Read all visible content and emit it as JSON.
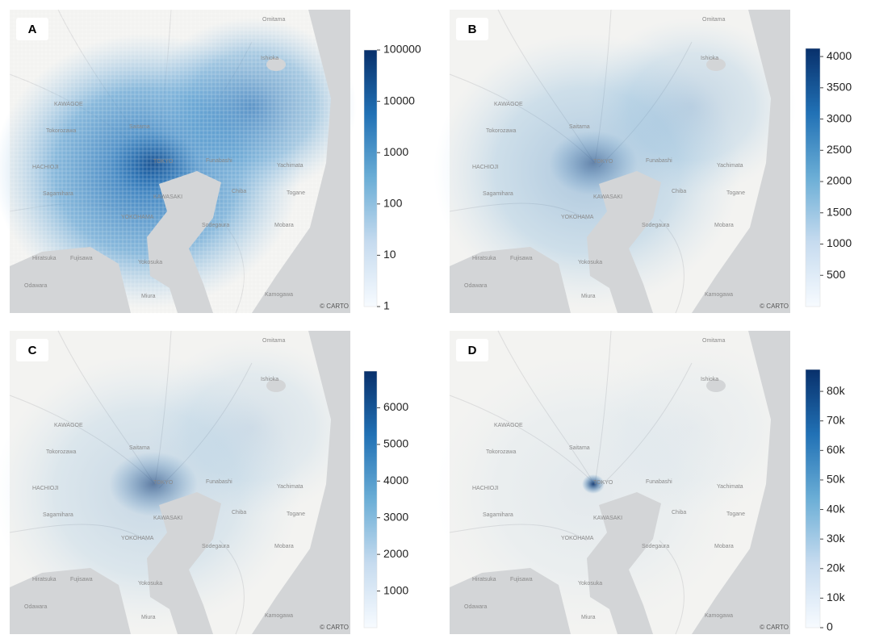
{
  "panels": [
    {
      "label": "A",
      "attribution": "© CARTO",
      "colorbar": {
        "scale": "log",
        "lim": [
          1,
          100000
        ],
        "ticks": [
          1,
          10,
          100,
          1000,
          10000,
          100000
        ]
      }
    },
    {
      "label": "B",
      "attribution": "© CARTO",
      "colorbar": {
        "scale": "linear",
        "lim": [
          0,
          4130
        ],
        "ticks": [
          500,
          1000,
          1500,
          2000,
          2500,
          3000,
          3500,
          4000
        ]
      }
    },
    {
      "label": "C",
      "attribution": "© CARTO",
      "colorbar": {
        "scale": "linear",
        "lim": [
          0,
          7000
        ],
        "ticks": [
          1000,
          2000,
          3000,
          4000,
          5000,
          6000
        ]
      }
    },
    {
      "label": "D",
      "attribution": "© CARTO",
      "colorbar": {
        "scale": "linear",
        "lim": [
          0,
          87400
        ],
        "ticks": [
          0,
          {
            "value": 10000,
            "label": "10k"
          },
          {
            "value": 20000,
            "label": "20k"
          },
          {
            "value": 30000,
            "label": "30k"
          },
          {
            "value": 40000,
            "label": "40k"
          },
          {
            "value": 50000,
            "label": "50k"
          },
          {
            "value": 60000,
            "label": "60k"
          },
          {
            "value": 70000,
            "label": "70k"
          },
          {
            "value": 80000,
            "label": "80k"
          }
        ]
      }
    }
  ],
  "place_names": [
    "Omitama",
    "Ishioka",
    "KAWAGOE",
    "Tokorozawa",
    "Saitama",
    "HACHIOJI",
    "Sagamihara",
    "TOKYO",
    "Funabashi",
    "Yachimata",
    "KAWASAKI",
    "Chiba",
    "Togane",
    "YOKOHAMA",
    "Sodegaura",
    "Mobara",
    "Hiratsuka",
    "Fujisawa",
    "Yokosuka",
    "Odawara",
    "Miura",
    "Kamogawa"
  ]
}
